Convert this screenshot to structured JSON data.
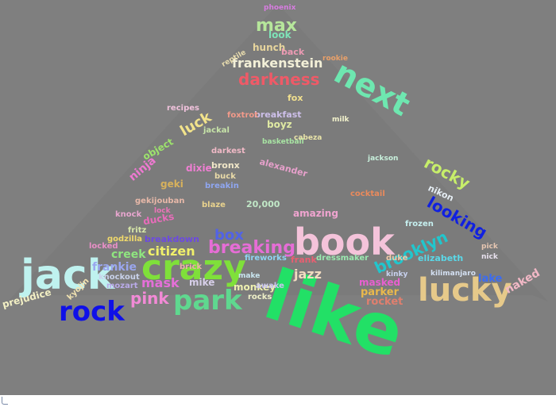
{
  "background_color": "#7f7f7f",
  "footer_color": "#ffffff",
  "mound_color": "#6a6a6a",
  "words": [
    {
      "text": "like",
      "color": "#22e066"
    },
    {
      "text": "book",
      "color": "#f4c3da"
    },
    {
      "text": "crazy",
      "color": "#7fe03a"
    },
    {
      "text": "jack",
      "color": "#bff2ef"
    },
    {
      "text": "lucky",
      "color": "#e6c98a"
    },
    {
      "text": "next",
      "color": "#6ee7b0"
    },
    {
      "text": "park",
      "color": "#5fd88f"
    },
    {
      "text": "rock",
      "color": "#0f10e8"
    },
    {
      "text": "pink",
      "color": "#f28ad6"
    },
    {
      "text": "darkness",
      "color": "#ef5a67"
    },
    {
      "text": "max",
      "color": "#b6e69b"
    },
    {
      "text": "breaking",
      "color": "#e66dd6"
    },
    {
      "text": "brooklyn",
      "color": "#21c6cd"
    },
    {
      "text": "frankenstein",
      "color": "#f3f0d8"
    },
    {
      "text": "looking",
      "color": "#1020e0"
    },
    {
      "text": "rocky",
      "color": "#c7ee6a"
    },
    {
      "text": "luck",
      "color": "#f2e38b"
    },
    {
      "text": "box",
      "color": "#5263e6"
    },
    {
      "text": "citizen",
      "color": "#f0f06a"
    },
    {
      "text": "mask",
      "color": "#e56fd8"
    },
    {
      "text": "jazz",
      "color": "#f2dcc0"
    },
    {
      "text": "frankie",
      "color": "#9aa6ef"
    },
    {
      "text": "creek",
      "color": "#8fe67f"
    },
    {
      "text": "naked",
      "color": "#f2b8c6"
    },
    {
      "text": "lake",
      "color": "#3c6cf0"
    },
    {
      "text": "rocket",
      "color": "#e07f6e"
    },
    {
      "text": "parker",
      "color": "#e9b84c"
    },
    {
      "text": "masked",
      "color": "#e85fcf"
    },
    {
      "text": "monkey",
      "color": "#eef0b0"
    },
    {
      "text": "mike",
      "color": "#d7cfe9"
    },
    {
      "text": "ninja",
      "color": "#ee79d1"
    },
    {
      "text": "object",
      "color": "#9de36c"
    },
    {
      "text": "breakfast",
      "color": "#cdbfe9"
    },
    {
      "text": "boyz",
      "color": "#dfe9a3"
    },
    {
      "text": "fox",
      "color": "#f1e08e"
    },
    {
      "text": "hunch",
      "color": "#e7d59d"
    },
    {
      "text": "back",
      "color": "#ec9ab3"
    },
    {
      "text": "look",
      "color": "#7ee4b8"
    },
    {
      "text": "bronx",
      "color": "#f0e6c8"
    },
    {
      "text": "dixie",
      "color": "#ee7fd2"
    },
    {
      "text": "alexander",
      "color": "#e6a0cb"
    },
    {
      "text": "20,000",
      "color": "#c1e8c7"
    },
    {
      "text": "amazing",
      "color": "#f0a4d0"
    },
    {
      "text": "elizabeth",
      "color": "#5ad8e8"
    },
    {
      "text": "dressmaker",
      "color": "#9be9b0"
    },
    {
      "text": "frank",
      "color": "#e85f71"
    },
    {
      "text": "fireworks",
      "color": "#8ed3f2"
    },
    {
      "text": "knockout",
      "color": "#c9d2eb"
    },
    {
      "text": "mozart",
      "color": "#b9aae8"
    },
    {
      "text": "prejudice",
      "color": "#f3f0c4"
    },
    {
      "text": "geki",
      "color": "#d7b15c"
    },
    {
      "text": "gekijouban",
      "color": "#e7b8a8"
    },
    {
      "text": "godzilla",
      "color": "#f0d96b"
    },
    {
      "text": "knock",
      "color": "#e8a6cf"
    },
    {
      "text": "fritz",
      "color": "#d7e7a8"
    },
    {
      "text": "breakdown",
      "color": "#6c4ae0"
    },
    {
      "text": "ducks",
      "color": "#e86cba"
    },
    {
      "text": "buck",
      "color": "#eadba8"
    },
    {
      "text": "brick",
      "color": "#eab0a8"
    },
    {
      "text": "blaze",
      "color": "#e8d28d"
    },
    {
      "text": "darkest",
      "color": "#f0b9c6"
    },
    {
      "text": "basketball",
      "color": "#a8e4a3"
    },
    {
      "text": "cabeza",
      "color": "#e8e3a8"
    },
    {
      "text": "cocktail",
      "color": "#ea8a5c"
    },
    {
      "text": "frozen",
      "color": "#c6f0f0"
    },
    {
      "text": "kinky",
      "color": "#c8d2ef"
    },
    {
      "text": "kilimanjaro",
      "color": "#d4e0f2"
    },
    {
      "text": "nick",
      "color": "#e9e2ef"
    },
    {
      "text": "pick",
      "color": "#e7c7b2"
    },
    {
      "text": "nikon",
      "color": "#e5edf3"
    },
    {
      "text": "milk",
      "color": "#f2f2cc"
    },
    {
      "text": "phoenix",
      "color": "#d77de0"
    },
    {
      "text": "reptile",
      "color": "#e8dcae"
    },
    {
      "text": "rookie",
      "color": "#e8a06a"
    },
    {
      "text": "jackal",
      "color": "#c7e4a8"
    },
    {
      "text": "recipes",
      "color": "#f0c2dc"
    },
    {
      "text": "foxtrot",
      "color": "#f29a8a"
    },
    {
      "text": "awake",
      "color": "#c8c4ef"
    },
    {
      "text": "make",
      "color": "#c9e6f0"
    },
    {
      "text": "rocks",
      "color": "#eef0c8"
    },
    {
      "text": "duke",
      "color": "#f0c9a8"
    },
    {
      "text": "locked",
      "color": "#e88fc7"
    },
    {
      "text": "kyojin",
      "color": "#f2e3b0"
    },
    {
      "text": "lock",
      "color": "#ec74b8"
    },
    {
      "text": "breakin",
      "color": "#8fa6f0"
    },
    {
      "text": "jackson",
      "color": "#c8f0dc"
    }
  ]
}
